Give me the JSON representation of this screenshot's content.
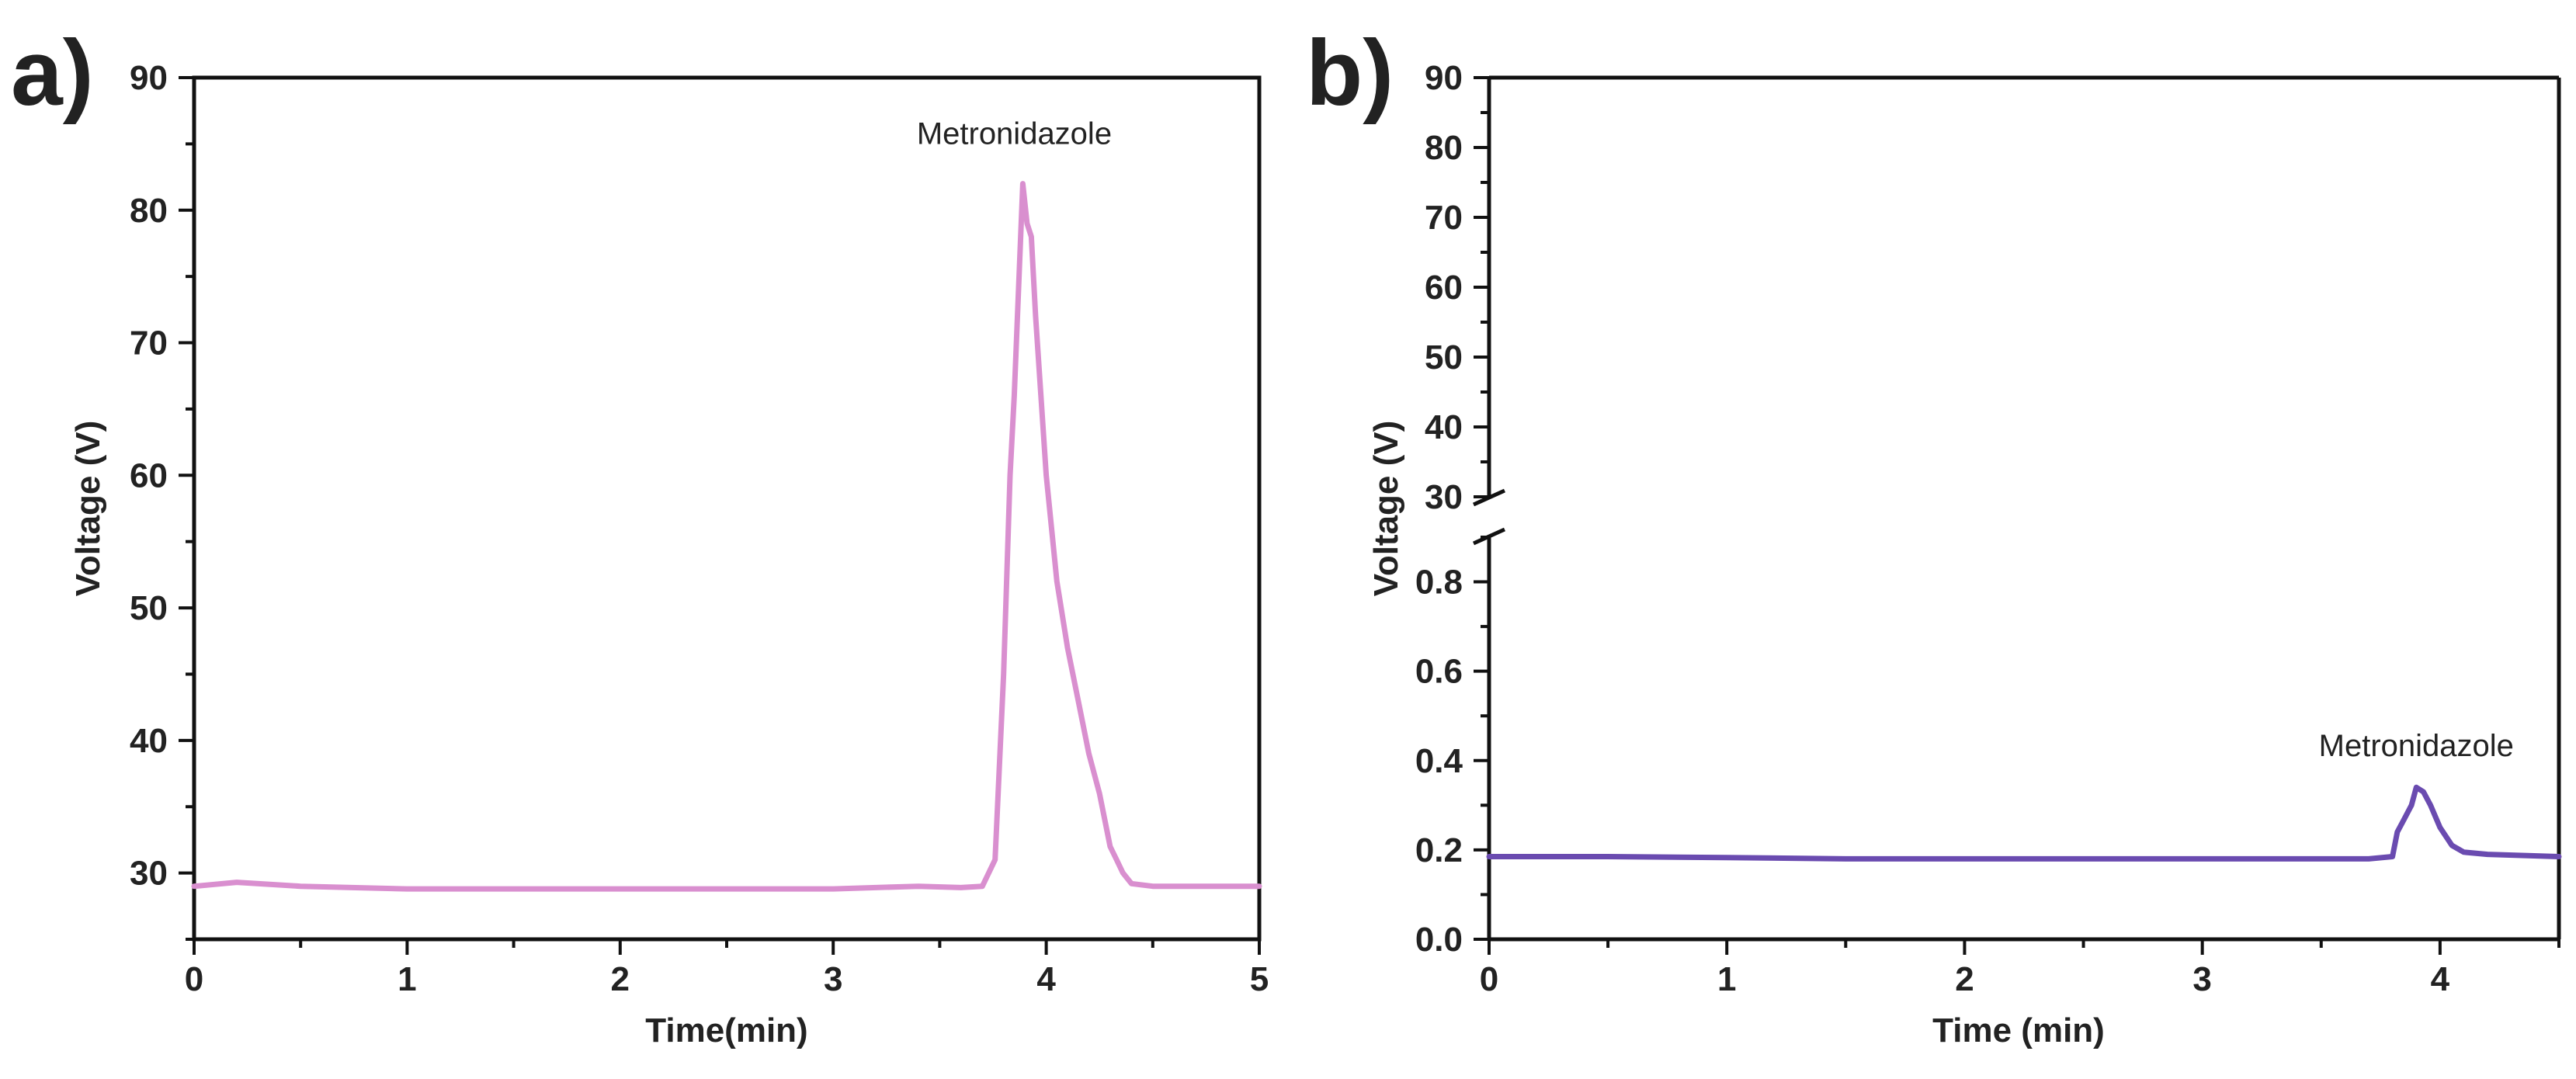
{
  "chart_data": [
    {
      "type": "line",
      "panel_label": "a)",
      "title": "",
      "xlabel": "Time(min)",
      "ylabel": "Voltage (V)",
      "xlim": [
        0,
        5
      ],
      "ylim": [
        25,
        90
      ],
      "xticks": [
        0,
        1,
        2,
        3,
        4,
        5
      ],
      "xtick_labels": [
        "0",
        "1",
        "2",
        "3",
        "4",
        "5"
      ],
      "yticks": [
        30,
        40,
        50,
        60,
        70,
        80,
        90
      ],
      "ytick_labels": [
        "30",
        "40",
        "50",
        "60",
        "70",
        "80",
        "90"
      ],
      "grid": false,
      "series": [
        {
          "name": "Metronidazole",
          "color": "#d98fcf",
          "x": [
            0,
            0.2,
            0.5,
            1.0,
            1.5,
            2.0,
            2.5,
            3.0,
            3.4,
            3.6,
            3.7,
            3.76,
            3.8,
            3.83,
            3.85,
            3.87,
            3.89,
            3.91,
            3.93,
            3.95,
            4.0,
            4.05,
            4.1,
            4.15,
            4.2,
            4.25,
            4.3,
            4.33,
            4.36,
            4.4,
            4.5,
            4.7,
            5.0
          ],
          "values": [
            29.0,
            29.3,
            29.0,
            28.8,
            28.8,
            28.8,
            28.8,
            28.8,
            29.0,
            28.9,
            29.0,
            31.0,
            45.0,
            60.0,
            66.0,
            74.0,
            82.0,
            79.0,
            78.0,
            72.0,
            60.0,
            52.0,
            47.0,
            43.0,
            39.0,
            36.0,
            32.0,
            31.0,
            30.0,
            29.2,
            29.0,
            29.0,
            29.0
          ]
        }
      ],
      "annotations": [
        {
          "text": "Metronidazole",
          "x": 3.85,
          "y": 85
        }
      ]
    },
    {
      "type": "line",
      "panel_label": "b)",
      "title": "",
      "xlabel": "Time (min)",
      "ylabel": "Voltage (V)",
      "xlim": [
        0,
        4.5
      ],
      "axis_break": {
        "lower_range": [
          0,
          0.9
        ],
        "upper_range": [
          30,
          90
        ]
      },
      "xticks": [
        0,
        1,
        2,
        3,
        4
      ],
      "xtick_labels": [
        "0",
        "1",
        "2",
        "3",
        "4"
      ],
      "yticks_lower": [
        0.0,
        0.2,
        0.4,
        0.6,
        0.8
      ],
      "ytick_labels_lower": [
        "0.0",
        "0.2",
        "0.4",
        "0.6",
        "0.8"
      ],
      "yticks_upper": [
        30,
        40,
        50,
        60,
        70,
        80,
        90
      ],
      "ytick_labels_upper": [
        "30",
        "40",
        "50",
        "60",
        "70",
        "80",
        "90"
      ],
      "grid": false,
      "series": [
        {
          "name": "Metronidazole",
          "color": "#6a4bb0",
          "x": [
            0,
            0.5,
            1.0,
            1.5,
            2.0,
            2.5,
            3.0,
            3.5,
            3.7,
            3.8,
            3.82,
            3.85,
            3.88,
            3.9,
            3.93,
            3.96,
            4.0,
            4.05,
            4.1,
            4.2,
            4.5
          ],
          "values": [
            0.185,
            0.185,
            0.183,
            0.18,
            0.18,
            0.18,
            0.18,
            0.18,
            0.18,
            0.185,
            0.24,
            0.27,
            0.3,
            0.34,
            0.33,
            0.3,
            0.25,
            0.21,
            0.195,
            0.19,
            0.185
          ]
        }
      ],
      "annotations": [
        {
          "text": "Metronidazole",
          "x": 3.9,
          "y": 0.41
        }
      ]
    }
  ]
}
